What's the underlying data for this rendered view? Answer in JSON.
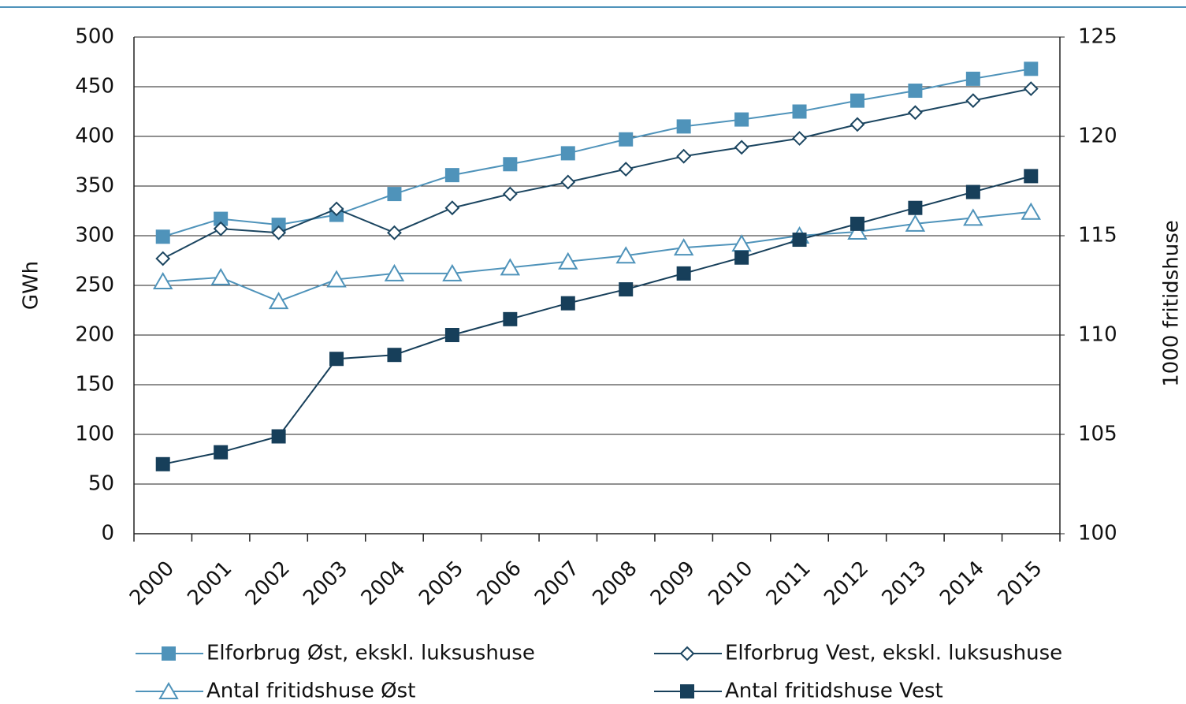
{
  "chart_data": {
    "type": "line",
    "categories": [
      "2000",
      "2001",
      "2002",
      "2003",
      "2004",
      "2005",
      "2006",
      "2007",
      "2008",
      "2009",
      "2010",
      "2011",
      "2012",
      "2013",
      "2014",
      "2015"
    ],
    "ylabel": "GWh",
    "y2label": "1000 fritidshuse",
    "ylim": [
      0,
      500
    ],
    "yticks": [
      0,
      50,
      100,
      150,
      200,
      250,
      300,
      350,
      400,
      450,
      500
    ],
    "y2lim": [
      100,
      125
    ],
    "y2ticks": [
      100,
      105,
      110,
      115,
      120,
      125
    ],
    "grid": true,
    "legend": "bottom",
    "series": [
      {
        "name": "Elforbrug Øst, ekskl. luksushuse",
        "color": "#4f93ba",
        "marker": "square",
        "marker_fill": "#4f93ba",
        "values": [
          299,
          317,
          311,
          321,
          342,
          361,
          372,
          383,
          397,
          410,
          417,
          425,
          436,
          446,
          458,
          468
        ]
      },
      {
        "name": "Elforbrug Vest, ekskl. luksushuse",
        "color": "#1b4560",
        "marker": "diamond",
        "marker_fill": "#ffffff",
        "values": [
          277,
          307,
          303,
          327,
          303,
          328,
          342,
          354,
          367,
          380,
          389,
          398,
          412,
          424,
          436,
          448
        ]
      },
      {
        "name": "Antal fritidshuse Øst",
        "color": "#4f93ba",
        "marker": "triangle",
        "marker_fill": "#ffffff",
        "axis": "y2",
        "values": [
          112.7,
          112.9,
          111.7,
          112.8,
          113.1,
          113.1,
          113.4,
          113.7,
          114.0,
          114.4,
          114.6,
          115.0,
          115.2,
          115.6,
          115.9,
          116.2
        ]
      },
      {
        "name": "Antal fritidshuse Vest",
        "color": "#173f5a",
        "marker": "square",
        "marker_fill": "#173f5a",
        "axis": "y2",
        "values": [
          103.5,
          104.1,
          104.9,
          108.8,
          109.0,
          110.0,
          110.8,
          111.6,
          112.3,
          113.1,
          113.9,
          114.8,
          115.6,
          116.4,
          117.2,
          118.0
        ]
      }
    ]
  }
}
